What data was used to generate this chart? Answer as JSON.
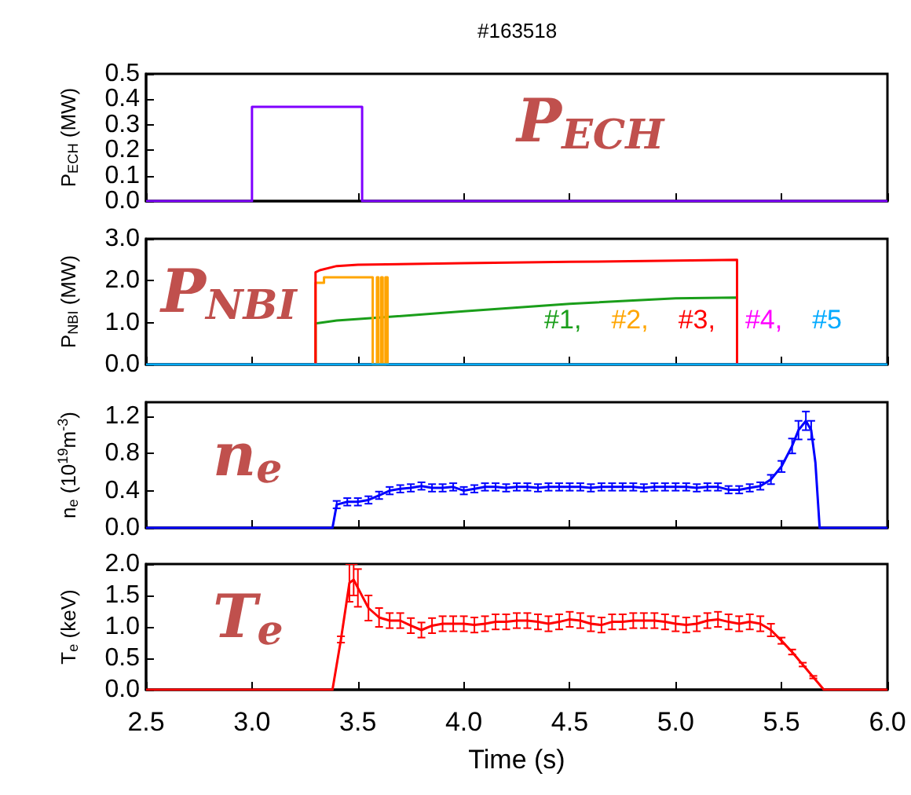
{
  "chart_data": [
    {
      "type": "line",
      "title": "#163518",
      "ylabel": "P$_{ECH}$ (MW)",
      "annotations": [
        "P$_{ECH}$"
      ],
      "tick_labels": "y",
      "xlim": [
        2.5,
        6.0
      ],
      "xticks": [
        2.5,
        3,
        3.5,
        4,
        4.5,
        5,
        5.5,
        6
      ],
      "ylim": [
        0,
        0.5
      ],
      "yticks": [
        {
          "value": 0,
          "label": "0.0"
        },
        0.1,
        0.2,
        0.3,
        0.4,
        0.5
      ],
      "series": [
        {
          "color": "#7f00ff",
          "x": [
            2.5,
            3.0,
            3.0,
            3.52,
            3.52,
            6.0
          ],
          "values": [
            0,
            0,
            0.37,
            0.37,
            0,
            0
          ]
        }
      ]
    },
    {
      "type": "line",
      "ylabel": "P$_{NBI}$ (MW)",
      "annotations": [
        "P$_{NBI}$"
      ],
      "tick_labels": "y",
      "legend": "bottom right",
      "xlim": [
        2.5,
        6.0
      ],
      "xticks": [
        2.5,
        3,
        3.5,
        4,
        4.5,
        5,
        5.5,
        6
      ],
      "ylim": [
        0,
        3
      ],
      "yticks": [
        {
          "value": 0,
          "label": "0.0"
        },
        {
          "value": 1,
          "label": "1.0"
        },
        {
          "value": 2,
          "label": "2.0"
        },
        {
          "value": 3,
          "label": "3.0"
        }
      ],
      "series": [
        {
          "name": "#1,",
          "color": "#1a9e1a",
          "x": [
            3.3,
            3.3,
            3.4,
            3.6,
            4.0,
            4.5,
            5.0,
            5.29,
            5.29
          ],
          "values": [
            0,
            0.98,
            1.05,
            1.12,
            1.27,
            1.45,
            1.58,
            1.6,
            0
          ]
        },
        {
          "name": "#2,",
          "color": "#ffa500",
          "x": [
            3.3,
            3.3,
            3.34,
            3.34,
            3.57,
            3.57,
            3.59,
            3.59,
            3.597,
            3.597,
            3.61,
            3.61,
            3.617,
            3.617,
            3.63,
            3.63,
            3.64,
            3.64
          ],
          "values": [
            0,
            1.95,
            1.95,
            2.08,
            2.08,
            0,
            0,
            2.08,
            2.08,
            0,
            0,
            2.08,
            2.08,
            0,
            0,
            2.08,
            2.08,
            0
          ]
        },
        {
          "name": "#3,",
          "color": "#ff0000",
          "x": [
            3.3,
            3.3,
            3.32,
            3.4,
            3.5,
            4.0,
            4.5,
            5.0,
            5.29,
            5.29
          ],
          "values": [
            0,
            2.2,
            2.25,
            2.35,
            2.38,
            2.42,
            2.45,
            2.48,
            2.5,
            0
          ]
        },
        {
          "name": "#4,",
          "color": "#ff00ff"
        },
        {
          "name": "#5",
          "color": "#00aaff",
          "x": [
            2.5,
            6.0
          ],
          "values": [
            0,
            0
          ]
        }
      ]
    },
    {
      "type": "line",
      "ylabel": "n$_{e}$ (10$^{19}$m$^{-3}$)",
      "annotations": [
        "n$_{e}$"
      ],
      "tick_labels": "y",
      "xlim": [
        2.5,
        6.0
      ],
      "xticks": [
        2.5,
        3,
        3.5,
        4,
        4.5,
        5,
        5.5,
        6
      ],
      "ylim": [
        0,
        1.35
      ],
      "yticks": [
        {
          "value": 0,
          "label": "0.0"
        },
        0.4,
        0.8,
        1.2
      ],
      "series": [
        {
          "color": "#0000ff",
          "x": [
            2.5,
            3.38,
            3.4,
            3.45,
            3.5,
            3.55,
            3.6,
            3.65,
            3.7,
            3.75,
            3.8,
            3.85,
            3.9,
            3.95,
            4.0,
            4.05,
            4.1,
            4.15,
            4.2,
            4.25,
            4.3,
            4.35,
            4.4,
            4.45,
            4.5,
            4.55,
            4.6,
            4.65,
            4.7,
            4.75,
            4.8,
            4.85,
            4.9,
            4.95,
            5.0,
            5.05,
            5.1,
            5.15,
            5.2,
            5.25,
            5.3,
            5.35,
            5.4,
            5.45,
            5.5,
            5.55,
            5.58,
            5.615,
            5.64,
            5.66,
            5.68,
            6.0
          ],
          "values": [
            0,
            0,
            0.25,
            0.28,
            0.28,
            0.3,
            0.35,
            0.4,
            0.42,
            0.43,
            0.45,
            0.43,
            0.43,
            0.44,
            0.4,
            0.42,
            0.44,
            0.44,
            0.43,
            0.44,
            0.44,
            0.43,
            0.44,
            0.44,
            0.44,
            0.44,
            0.43,
            0.44,
            0.44,
            0.44,
            0.44,
            0.43,
            0.44,
            0.44,
            0.44,
            0.44,
            0.43,
            0.44,
            0.44,
            0.41,
            0.41,
            0.43,
            0.45,
            0.52,
            0.66,
            0.88,
            1.05,
            1.15,
            1.05,
            0.7,
            0,
            0
          ],
          "errors": [
            null,
            null,
            0.04,
            0.04,
            0.04,
            0.04,
            0.04,
            0.04,
            0.04,
            0.04,
            0.04,
            0.04,
            0.04,
            0.04,
            0.04,
            0.04,
            0.04,
            0.04,
            0.04,
            0.04,
            0.04,
            0.04,
            0.04,
            0.04,
            0.04,
            0.04,
            0.04,
            0.04,
            0.04,
            0.04,
            0.04,
            0.04,
            0.04,
            0.04,
            0.04,
            0.04,
            0.04,
            0.04,
            0.04,
            0.04,
            0.04,
            0.04,
            0.04,
            0.05,
            0.06,
            0.08,
            0.1,
            0.1,
            0.1,
            null,
            null,
            null
          ]
        }
      ]
    },
    {
      "type": "line",
      "ylabel": "T$_{e}$ (keV)",
      "xlabel": "Time (s)",
      "annotations": [
        "T$_{e}$"
      ],
      "xlim": [
        2.5,
        6.0
      ],
      "xticks": [
        2.5,
        {
          "value": 3,
          "label": "3.0"
        },
        3.5,
        {
          "value": 4,
          "label": "4.0"
        },
        4.5,
        {
          "value": 5,
          "label": "5.0"
        },
        5.5,
        {
          "value": 6,
          "label": "6.0"
        }
      ],
      "ylim": [
        0,
        2
      ],
      "yticks": [
        {
          "value": 0,
          "label": "0.0"
        },
        0.5,
        {
          "value": 1,
          "label": "1.0"
        },
        1.5,
        {
          "value": 2,
          "label": "2.0"
        }
      ],
      "series": [
        {
          "color": "#ff0000",
          "x": [
            2.5,
            3.38,
            3.42,
            3.46,
            3.48,
            3.5,
            3.55,
            3.6,
            3.65,
            3.7,
            3.75,
            3.8,
            3.85,
            3.9,
            3.95,
            4.0,
            4.05,
            4.1,
            4.15,
            4.2,
            4.25,
            4.3,
            4.35,
            4.4,
            4.45,
            4.5,
            4.55,
            4.6,
            4.65,
            4.7,
            4.75,
            4.8,
            4.85,
            4.9,
            4.95,
            5.0,
            5.05,
            5.1,
            5.15,
            5.2,
            5.25,
            5.3,
            5.35,
            5.4,
            5.45,
            5.5,
            5.55,
            5.6,
            5.65,
            5.7,
            6.0
          ],
          "values": [
            0,
            0,
            0.8,
            1.7,
            1.75,
            1.62,
            1.3,
            1.15,
            1.1,
            1.1,
            1.02,
            0.95,
            1.02,
            1.05,
            1.05,
            1.05,
            1.03,
            1.05,
            1.08,
            1.08,
            1.1,
            1.1,
            1.08,
            1.05,
            1.08,
            1.12,
            1.1,
            1.05,
            1.03,
            1.08,
            1.08,
            1.1,
            1.1,
            1.1,
            1.08,
            1.05,
            1.03,
            1.05,
            1.1,
            1.12,
            1.08,
            1.05,
            1.08,
            1.05,
            0.95,
            0.78,
            0.6,
            0.4,
            0.2,
            0,
            0
          ],
          "errors": [
            null,
            null,
            0.05,
            0.3,
            0.25,
            0.3,
            0.2,
            0.15,
            0.12,
            0.12,
            0.12,
            0.12,
            0.12,
            0.12,
            0.12,
            0.12,
            0.12,
            0.12,
            0.12,
            0.12,
            0.12,
            0.12,
            0.12,
            0.12,
            0.12,
            0.12,
            0.12,
            0.12,
            0.12,
            0.12,
            0.12,
            0.12,
            0.12,
            0.12,
            0.12,
            0.12,
            0.12,
            0.12,
            0.12,
            0.12,
            0.12,
            0.12,
            0.12,
            0.12,
            0.1,
            0.05,
            0.04,
            0.03,
            0.02,
            null,
            null
          ]
        }
      ]
    }
  ]
}
